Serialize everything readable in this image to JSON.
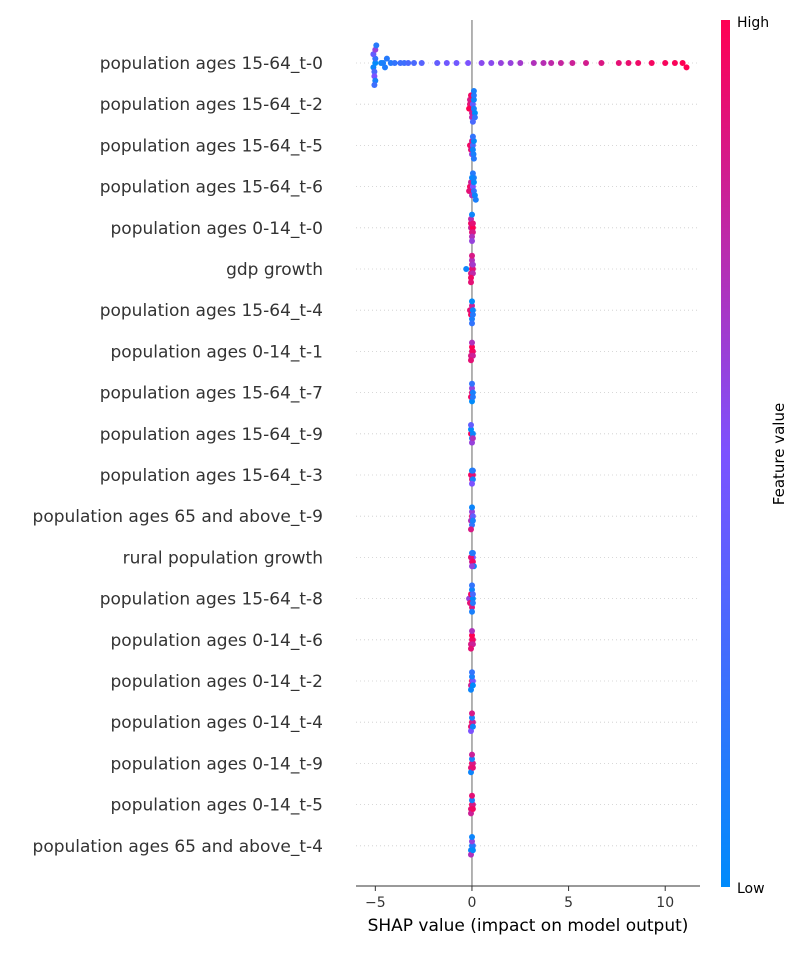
{
  "chart_data": {
    "type": "scatter",
    "subtype": "shap-beeswarm",
    "xlabel": "SHAP value (impact on model output)",
    "xlim": [
      -6.0,
      11.8
    ],
    "xticks": [
      -5,
      0,
      5,
      10
    ],
    "xtick_labels": [
      "−5",
      "0",
      "5",
      "10"
    ],
    "zero_line": true,
    "row_gridlines": "dotted",
    "colormap": {
      "low": "#008bfb",
      "mid": "#7c52ff",
      "high": "#ff0052"
    },
    "colorbar": {
      "title": "Feature value",
      "low_label": "Low",
      "high_label": "High"
    },
    "features": [
      {
        "name": "population ages 15-64_t-0",
        "points": [
          [
            -5.0,
            0.0
          ],
          [
            -5.1,
            0.05
          ],
          [
            -5.0,
            0.2
          ],
          [
            -5.05,
            0.3
          ],
          [
            -5.1,
            0.4
          ],
          [
            -5.05,
            0.5
          ],
          [
            -5.0,
            0.6
          ],
          [
            -5.0,
            0.1
          ],
          [
            -4.95,
            0.15
          ],
          [
            -5.05,
            0.25
          ],
          [
            -4.7,
            0.05
          ],
          [
            -4.6,
            0.1
          ],
          [
            -4.5,
            0.12
          ],
          [
            -4.4,
            0.15
          ],
          [
            -4.2,
            0.15
          ],
          [
            -4.0,
            0.2
          ],
          [
            -3.7,
            0.25
          ],
          [
            -3.5,
            0.25
          ],
          [
            -3.3,
            0.3
          ],
          [
            -3.0,
            0.3
          ],
          [
            -2.6,
            0.35
          ],
          [
            -1.8,
            0.4
          ],
          [
            -1.3,
            0.45
          ],
          [
            -0.8,
            0.45
          ],
          [
            -0.2,
            0.5
          ],
          [
            0.5,
            0.55
          ],
          [
            1.0,
            0.55
          ],
          [
            1.5,
            0.6
          ],
          [
            2.0,
            0.6
          ],
          [
            2.5,
            0.65
          ],
          [
            3.2,
            0.7
          ],
          [
            3.7,
            0.72
          ],
          [
            4.1,
            0.75
          ],
          [
            4.6,
            0.78
          ],
          [
            5.2,
            0.8
          ],
          [
            5.9,
            0.83
          ],
          [
            6.7,
            0.86
          ],
          [
            7.6,
            0.9
          ],
          [
            8.1,
            0.92
          ],
          [
            8.6,
            0.94
          ],
          [
            9.3,
            0.96
          ],
          [
            10.0,
            0.97
          ],
          [
            10.5,
            0.98
          ],
          [
            10.9,
            1.0
          ],
          [
            11.1,
            1.0
          ]
        ]
      },
      {
        "name": "population ages 15-64_t-2",
        "points": [
          [
            -0.1,
            0.9
          ],
          [
            -0.15,
            1.0
          ],
          [
            -0.1,
            0.85
          ],
          [
            0.0,
            0.8
          ],
          [
            -0.05,
            0.95
          ],
          [
            0.0,
            0.75
          ],
          [
            0.05,
            0.4
          ],
          [
            0.1,
            0.1
          ],
          [
            0.1,
            0.05
          ],
          [
            0.15,
            0.0
          ],
          [
            0.1,
            0.15
          ],
          [
            0.15,
            0.2
          ],
          [
            0.1,
            0.1
          ],
          [
            0.05,
            0.3
          ]
        ]
      },
      {
        "name": "population ages 15-64_t-5",
        "points": [
          [
            -0.1,
            0.95
          ],
          [
            -0.05,
            0.9
          ],
          [
            0.0,
            0.8
          ],
          [
            0.0,
            0.6
          ],
          [
            0.05,
            0.3
          ],
          [
            0.05,
            0.05
          ],
          [
            0.1,
            0.0
          ],
          [
            0.08,
            0.1
          ],
          [
            0.05,
            0.2
          ],
          [
            0.1,
            0.15
          ]
        ]
      },
      {
        "name": "population ages 15-64_t-6",
        "points": [
          [
            -0.1,
            0.95
          ],
          [
            -0.15,
            0.9
          ],
          [
            -0.05,
            0.8
          ],
          [
            0.0,
            0.7
          ],
          [
            0.05,
            0.5
          ],
          [
            0.1,
            0.2
          ],
          [
            0.1,
            0.0
          ],
          [
            0.15,
            0.05
          ],
          [
            0.1,
            0.1
          ],
          [
            0.2,
            0.1
          ],
          [
            0.05,
            0.15
          ],
          [
            0.0,
            0.05
          ]
        ]
      },
      {
        "name": "population ages 0-14_t-0",
        "points": [
          [
            -0.05,
            0.8
          ],
          [
            0.0,
            0.9
          ],
          [
            0.05,
            1.0
          ],
          [
            -0.05,
            0.95
          ],
          [
            0.05,
            0.85
          ],
          [
            0.0,
            0.7
          ],
          [
            -0.05,
            0.75
          ],
          [
            0.05,
            0.9
          ],
          [
            0.0,
            0.6
          ],
          [
            0.0,
            0.05
          ]
        ]
      },
      {
        "name": "gdp growth",
        "points": [
          [
            -0.3,
            0.05
          ],
          [
            0.0,
            0.95
          ],
          [
            0.05,
            0.9
          ],
          [
            -0.05,
            0.85
          ],
          [
            0.0,
            0.8
          ],
          [
            0.05,
            0.75
          ],
          [
            -0.05,
            0.95
          ],
          [
            0.0,
            0.7
          ],
          [
            0.05,
            0.65
          ],
          [
            -0.05,
            0.9
          ],
          [
            0.0,
            0.85
          ]
        ]
      },
      {
        "name": "population ages 15-64_t-4",
        "points": [
          [
            -0.1,
            0.9
          ],
          [
            -0.05,
            0.95
          ],
          [
            0.0,
            0.8
          ],
          [
            0.0,
            0.1
          ],
          [
            0.05,
            0.05
          ],
          [
            0.0,
            0.0
          ],
          [
            0.05,
            0.15
          ],
          [
            0.0,
            0.2
          ]
        ]
      },
      {
        "name": "population ages 0-14_t-1",
        "points": [
          [
            0.0,
            0.9
          ],
          [
            0.05,
            0.95
          ],
          [
            -0.05,
            0.85
          ],
          [
            0.0,
            1.0
          ],
          [
            0.05,
            0.8
          ],
          [
            -0.05,
            0.9
          ],
          [
            0.0,
            0.7
          ]
        ]
      },
      {
        "name": "population ages 15-64_t-7",
        "points": [
          [
            0.0,
            0.9
          ],
          [
            -0.05,
            0.95
          ],
          [
            0.0,
            0.6
          ],
          [
            0.05,
            0.1
          ],
          [
            0.0,
            0.0
          ],
          [
            0.0,
            0.2
          ],
          [
            0.05,
            0.15
          ]
        ]
      },
      {
        "name": "population ages 15-64_t-9",
        "points": [
          [
            -0.05,
            0.95
          ],
          [
            0.0,
            0.1
          ],
          [
            0.05,
            0.05
          ],
          [
            -0.05,
            0.0
          ],
          [
            0.0,
            0.6
          ],
          [
            0.05,
            0.7
          ],
          [
            -0.05,
            0.4
          ]
        ]
      },
      {
        "name": "population ages 15-64_t-3",
        "points": [
          [
            -0.05,
            0.95
          ],
          [
            0.05,
            0.9
          ],
          [
            0.0,
            0.85
          ],
          [
            0.05,
            0.1
          ],
          [
            0.0,
            0.0
          ],
          [
            0.05,
            0.15
          ],
          [
            0.0,
            0.5
          ]
        ]
      },
      {
        "name": "population ages 65 and above_t-9",
        "points": [
          [
            0.0,
            0.9
          ],
          [
            -0.05,
            0.7
          ],
          [
            0.0,
            0.6
          ],
          [
            0.05,
            0.4
          ],
          [
            0.0,
            0.2
          ],
          [
            0.05,
            0.1
          ],
          [
            0.0,
            0.05
          ],
          [
            -0.05,
            0.85
          ]
        ]
      },
      {
        "name": "rural population growth",
        "points": [
          [
            0.05,
            0.5
          ],
          [
            -0.05,
            0.9
          ],
          [
            0.0,
            0.8
          ],
          [
            0.05,
            0.95
          ],
          [
            0.0,
            0.1
          ],
          [
            0.05,
            0.15
          ],
          [
            0.1,
            0.05
          ],
          [
            0.0,
            0.6
          ]
        ]
      },
      {
        "name": "population ages 15-64_t-8",
        "points": [
          [
            -0.15,
            0.6
          ],
          [
            -0.1,
            0.9
          ],
          [
            -0.05,
            0.95
          ],
          [
            0.0,
            0.85
          ],
          [
            0.0,
            0.05
          ],
          [
            0.05,
            0.0
          ],
          [
            0.0,
            0.1
          ],
          [
            0.05,
            0.15
          ],
          [
            0.0,
            0.2
          ],
          [
            0.05,
            0.3
          ]
        ]
      },
      {
        "name": "population ages 0-14_t-6",
        "points": [
          [
            0.0,
            0.9
          ],
          [
            0.05,
            0.95
          ],
          [
            -0.05,
            0.85
          ],
          [
            0.0,
            1.0
          ],
          [
            0.05,
            0.8
          ],
          [
            -0.05,
            0.9
          ],
          [
            0.0,
            0.7
          ]
        ]
      },
      {
        "name": "population ages 0-14_t-2",
        "points": [
          [
            0.0,
            0.95
          ],
          [
            -0.05,
            0.8
          ],
          [
            0.05,
            0.5
          ],
          [
            0.0,
            0.1
          ],
          [
            -0.05,
            0.05
          ],
          [
            0.0,
            0.2
          ],
          [
            0.05,
            0.0
          ]
        ]
      },
      {
        "name": "population ages 0-14_t-4",
        "points": [
          [
            0.0,
            0.95
          ],
          [
            -0.05,
            0.9
          ],
          [
            0.05,
            0.8
          ],
          [
            0.0,
            0.1
          ],
          [
            -0.05,
            0.5
          ],
          [
            0.05,
            0.05
          ],
          [
            0.0,
            0.85
          ]
        ]
      },
      {
        "name": "population ages 0-14_t-9",
        "points": [
          [
            0.0,
            0.95
          ],
          [
            -0.05,
            0.9
          ],
          [
            0.05,
            0.85
          ],
          [
            0.0,
            0.1
          ],
          [
            -0.05,
            0.05
          ],
          [
            0.0,
            0.8
          ],
          [
            0.05,
            0.9
          ]
        ]
      },
      {
        "name": "population ages 0-14_t-5",
        "points": [
          [
            0.0,
            0.95
          ],
          [
            -0.05,
            0.9
          ],
          [
            0.05,
            0.85
          ],
          [
            0.0,
            0.1
          ],
          [
            -0.05,
            0.8
          ],
          [
            0.0,
            0.9
          ],
          [
            0.05,
            0.95
          ]
        ]
      },
      {
        "name": "population ages 65 and above_t-4",
        "points": [
          [
            0.0,
            0.1
          ],
          [
            -0.05,
            0.05
          ],
          [
            0.05,
            0.15
          ],
          [
            0.0,
            0.6
          ],
          [
            -0.05,
            0.7
          ],
          [
            0.0,
            0.05
          ],
          [
            0.05,
            0.0
          ]
        ]
      }
    ]
  }
}
